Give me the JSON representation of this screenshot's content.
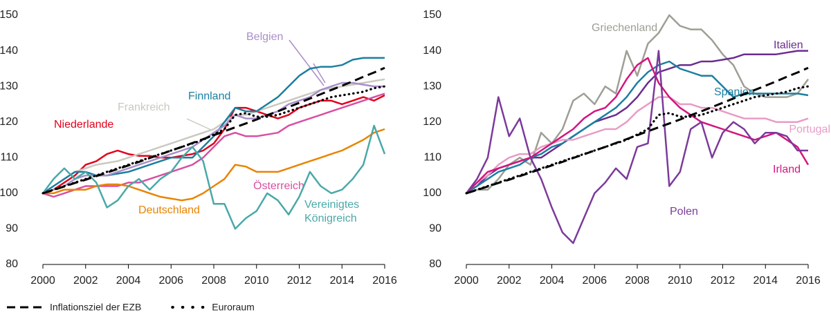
{
  "chart_data": [
    {
      "type": "line",
      "grid": false,
      "x": [
        2000,
        2000.5,
        2001,
        2001.5,
        2002,
        2002.5,
        2003,
        2003.5,
        2004,
        2004.5,
        2005,
        2005.5,
        2006,
        2006.5,
        2007,
        2007.5,
        2008,
        2008.5,
        2009,
        2009.5,
        2010,
        2010.5,
        2011,
        2011.5,
        2012,
        2012.5,
        2013,
        2013.5,
        2014,
        2014.5,
        2015,
        2015.5,
        2016
      ],
      "xlim": [
        2000,
        2016
      ],
      "xticks": [
        2000,
        2002,
        2004,
        2006,
        2008,
        2010,
        2012,
        2014,
        2016
      ],
      "ylim": [
        80,
        150
      ],
      "yticks": [
        80,
        90,
        100,
        110,
        120,
        130,
        140,
        150
      ],
      "series": [
        {
          "name": "Niederlande",
          "color": "#e3001b",
          "values": [
            100,
            101,
            103,
            105,
            108,
            109,
            111,
            112,
            111,
            110.5,
            110.5,
            110,
            110,
            110.5,
            111,
            112,
            114,
            118,
            124,
            124,
            123,
            122,
            121,
            122,
            124,
            125,
            126,
            126,
            125,
            126,
            127,
            126,
            127.5
          ]
        },
        {
          "name": "Frankreich",
          "color": "#c9c9c0",
          "values": [
            100,
            102,
            104,
            106,
            107,
            108,
            108.5,
            109,
            110,
            111,
            112,
            113,
            114,
            115,
            116,
            117,
            118,
            120,
            122,
            122,
            123,
            124,
            125,
            126,
            127,
            128,
            129,
            129.5,
            130,
            130.5,
            131,
            131.5,
            132
          ]
        },
        {
          "name": "Finnland",
          "color": "#1a7fa0",
          "values": [
            100,
            102,
            104,
            106,
            106,
            105,
            105,
            105.5,
            106,
            107,
            108,
            109,
            110,
            110,
            110,
            113,
            116,
            120,
            124,
            123,
            123,
            125,
            127,
            130,
            133,
            135,
            135.5,
            135.5,
            136,
            137.5,
            138,
            138,
            138
          ]
        },
        {
          "name": "Belgien",
          "color": "#a98ec8",
          "values": [
            100,
            101,
            102,
            104,
            105,
            105,
            105,
            106,
            107,
            108,
            109,
            110,
            111,
            112,
            113,
            115,
            117,
            119,
            122,
            121,
            121,
            122,
            123,
            125,
            126,
            127,
            129,
            130,
            131,
            131,
            130.5,
            130,
            130
          ]
        },
        {
          "name": "Österreich",
          "color": "#d84fa0",
          "values": [
            100,
            99,
            100,
            101,
            102,
            102,
            102,
            102,
            103,
            103,
            104,
            105,
            106,
            107,
            108,
            110,
            113,
            116,
            117,
            116,
            116,
            116.5,
            117,
            119,
            120,
            121,
            122,
            123,
            124,
            125,
            126,
            127,
            128
          ]
        },
        {
          "name": "Deutschland",
          "color": "#e98300",
          "values": [
            100,
            100,
            101,
            101,
            101,
            102,
            102.5,
            102.5,
            102,
            101,
            100,
            99,
            98.5,
            98,
            98.5,
            100,
            102,
            104,
            108,
            107.5,
            106,
            106,
            106,
            107,
            108,
            109,
            110,
            111,
            112,
            113.5,
            115,
            117,
            118
          ]
        },
        {
          "name": "Vereinigtes Königreich",
          "color": "#4aa8a8",
          "values": [
            100,
            104,
            107,
            104,
            106,
            103,
            96,
            98,
            102,
            104,
            101,
            104,
            106,
            110,
            113,
            109,
            97,
            97,
            90,
            93,
            95,
            100,
            98,
            94,
            99,
            106,
            102,
            100,
            101,
            104,
            108,
            119,
            111
          ]
        },
        {
          "name": "Inflationsziel der EZB",
          "color": "#000000",
          "dash": "dashed",
          "values": [
            100,
            100.9,
            101.9,
            102.9,
            103.8,
            104.8,
            105.8,
            106.8,
            107.8,
            108.8,
            109.9,
            110.9,
            112.0,
            113.0,
            114.1,
            115.2,
            116.3,
            117.4,
            118.5,
            119.6,
            120.7,
            121.9,
            123.0,
            124.2,
            125.4,
            126.6,
            127.8,
            129.0,
            130.2,
            131.4,
            132.7,
            133.9,
            135.2
          ]
        },
        {
          "name": "Euroraum",
          "color": "#000000",
          "dash": "dotted",
          "values": [
            100,
            101,
            102,
            103,
            104,
            105,
            106,
            107,
            108,
            109,
            110,
            111,
            112,
            113,
            114,
            115,
            116.5,
            118,
            122,
            122.5,
            121.5,
            121.5,
            122,
            123,
            124,
            125,
            126,
            127,
            127.5,
            128,
            128.5,
            129.5,
            130
          ]
        }
      ]
    },
    {
      "type": "line",
      "grid": false,
      "x": [
        2000,
        2000.5,
        2001,
        2001.5,
        2002,
        2002.5,
        2003,
        2003.5,
        2004,
        2004.5,
        2005,
        2005.5,
        2006,
        2006.5,
        2007,
        2007.5,
        2008,
        2008.5,
        2009,
        2009.5,
        2010,
        2010.5,
        2011,
        2011.5,
        2012,
        2012.5,
        2013,
        2013.5,
        2014,
        2014.5,
        2015,
        2015.5,
        2016
      ],
      "xlim": [
        2000,
        2016
      ],
      "xticks": [
        2000,
        2002,
        2004,
        2006,
        2008,
        2010,
        2012,
        2014,
        2016
      ],
      "ylim": [
        80,
        150
      ],
      "yticks": [
        80,
        90,
        100,
        110,
        120,
        130,
        140,
        150
      ],
      "series": [
        {
          "name": "Griechenland",
          "color": "#9e9e95",
          "values": [
            100,
            101,
            101,
            104,
            108,
            110,
            108,
            117,
            114,
            118,
            126,
            128,
            125,
            130,
            128,
            140,
            133,
            142,
            145,
            150,
            147,
            146,
            146,
            143,
            139,
            136,
            130,
            128,
            127,
            127,
            127,
            128,
            132
          ]
        },
        {
          "name": "Italien",
          "color": "#6a2c8f",
          "values": [
            100,
            102,
            105,
            107,
            108,
            109,
            110,
            110,
            112,
            114,
            116,
            118,
            120,
            121,
            122,
            124,
            127,
            131,
            134,
            135,
            136,
            136,
            137,
            137,
            137.5,
            138,
            139,
            139,
            139,
            139,
            139.5,
            140,
            140
          ]
        },
        {
          "name": "Spanien",
          "color": "#1a7fa0",
          "values": [
            100,
            102,
            104,
            106,
            107,
            108,
            110,
            111,
            113,
            114,
            116,
            118,
            120,
            122,
            124,
            127,
            131,
            134,
            136,
            137,
            135,
            134,
            133,
            133,
            130,
            127,
            128,
            128,
            128,
            128,
            128,
            128,
            127.5
          ]
        },
        {
          "name": "Portugal",
          "color": "#e79cc4",
          "values": [
            100,
            103,
            105,
            108,
            110,
            111,
            111,
            113,
            114,
            115,
            115,
            116,
            117,
            118,
            118,
            120,
            123,
            125,
            127,
            127,
            125,
            125,
            124,
            124,
            123,
            122,
            121,
            121,
            121,
            120,
            120,
            120,
            121
          ]
        },
        {
          "name": "Irland",
          "color": "#d4157e",
          "values": [
            100,
            103,
            106,
            107,
            108,
            109,
            110,
            112,
            114,
            116,
            118,
            121,
            123,
            124,
            127,
            132,
            136,
            138,
            131,
            127,
            124,
            122,
            120,
            119,
            118,
            117,
            116,
            115,
            116,
            117,
            115,
            113,
            108
          ]
        },
        {
          "name": "Polen",
          "color": "#7b3a9a",
          "values": [
            100,
            104,
            110,
            127,
            116,
            121,
            110,
            104,
            96,
            89,
            86,
            93,
            100,
            103,
            107,
            104,
            113,
            114,
            140,
            102,
            106,
            118,
            120,
            110,
            117,
            120,
            118,
            114,
            117,
            117,
            116,
            112,
            112
          ]
        },
        {
          "color": "#000000",
          "dash": "dashed",
          "values": [
            100,
            100.9,
            101.9,
            102.9,
            103.8,
            104.8,
            105.8,
            106.8,
            107.8,
            108.8,
            109.9,
            110.9,
            112.0,
            113.0,
            114.1,
            115.2,
            116.3,
            117.4,
            118.5,
            119.6,
            120.7,
            121.9,
            123.0,
            124.2,
            125.4,
            126.6,
            127.8,
            129.0,
            130.2,
            131.4,
            132.7,
            133.9,
            135.2
          ]
        },
        {
          "color": "#000000",
          "dash": "dotted",
          "values": [
            100,
            101,
            102,
            103,
            104,
            105,
            106,
            107,
            108,
            109,
            110,
            111,
            112,
            113,
            114,
            115,
            116.5,
            118,
            122,
            122.5,
            121.5,
            121.5,
            122,
            123,
            124,
            125,
            126,
            127,
            127.5,
            128,
            128.5,
            129.5,
            130
          ]
        }
      ]
    }
  ]
}
